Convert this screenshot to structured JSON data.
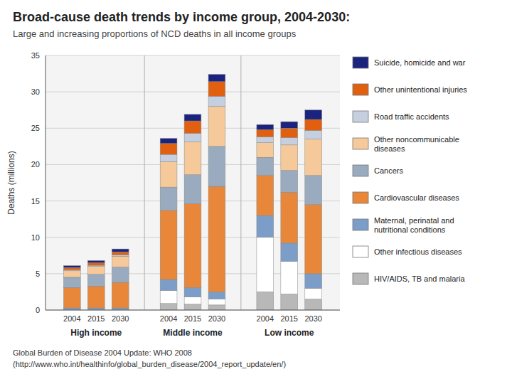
{
  "chart_data": {
    "type": "bar",
    "stacked": true,
    "title": "Broad-cause death trends by income group, 2004-2030:",
    "subtitle": "Large and increasing proportions of NCD deaths in all income groups",
    "ylabel": "Deaths (millions)",
    "groups": [
      "High income",
      "Middle income",
      "Low income"
    ],
    "categories": [
      "2004",
      "2015",
      "2030",
      "2004",
      "2015",
      "2030",
      "2004",
      "2015",
      "2030"
    ],
    "series": [
      {
        "name": "HIV/AIDS, TB and malaria",
        "color": "#b8b8b8",
        "values": [
          0.05,
          0.05,
          0.05,
          0.9,
          0.8,
          0.7,
          2.5,
          2.2,
          1.5
        ]
      },
      {
        "name": "Other infectious diseases",
        "color": "#ffffff",
        "values": [
          0.05,
          0.05,
          0.05,
          1.8,
          1.0,
          0.8,
          7.5,
          4.5,
          1.5
        ]
      },
      {
        "name": "Maternal, perinatal and\nnutritional conditions",
        "color": "#7b9dc8",
        "values": [
          0.2,
          0.2,
          0.2,
          1.5,
          1.3,
          1.0,
          3.0,
          2.5,
          2.0
        ]
      },
      {
        "name": "Cardiovascular diseases",
        "color": "#e8873a",
        "values": [
          2.8,
          3.0,
          3.5,
          9.5,
          11.5,
          14.5,
          5.5,
          7.0,
          9.5
        ]
      },
      {
        "name": "Cancers",
        "color": "#9aabbf",
        "values": [
          1.4,
          1.6,
          2.1,
          3.2,
          4.0,
          5.5,
          2.5,
          3.0,
          4.0
        ]
      },
      {
        "name": "Other noncommunicable\ndiseases",
        "color": "#f5c99a",
        "values": [
          0.9,
          1.1,
          1.5,
          3.5,
          4.5,
          5.5,
          2.0,
          3.5,
          5.0
        ]
      },
      {
        "name": "Road traffic accidents",
        "color": "#c5cfe0",
        "values": [
          0.15,
          0.15,
          0.2,
          1.0,
          1.2,
          1.4,
          0.8,
          1.0,
          1.2
        ]
      },
      {
        "name": "Other unintentional injuries",
        "color": "#e06010",
        "values": [
          0.3,
          0.35,
          0.4,
          1.5,
          1.7,
          2.0,
          1.0,
          1.3,
          1.5
        ]
      },
      {
        "name": "Suicide, homicide and war",
        "color": "#1a237e",
        "values": [
          0.25,
          0.3,
          0.4,
          0.7,
          0.9,
          1.0,
          0.7,
          0.9,
          1.3
        ]
      }
    ],
    "ylim": [
      0,
      35
    ],
    "yticks": [
      0,
      5,
      10,
      15,
      20,
      25,
      30,
      35
    ],
    "grid": true,
    "legend": "right",
    "source": [
      "Global Burden of Disease 2004 Update: WHO 2008",
      "(http://www.who.int/healthinfo/global_burden_disease/2004_report_update/en/)"
    ]
  }
}
